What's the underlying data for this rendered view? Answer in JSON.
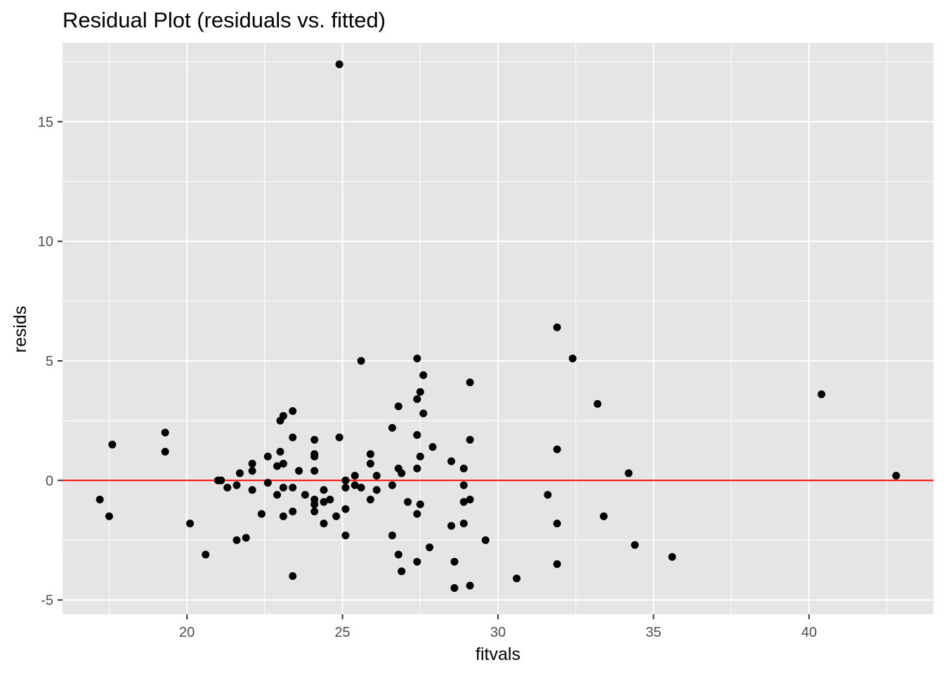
{
  "chart_data": {
    "type": "scatter",
    "title": "Residual Plot (residuals vs. fitted)",
    "xlabel": "fitvals",
    "ylabel": "resids",
    "xlim": [
      16,
      44
    ],
    "ylim": [
      -5.6,
      18.3
    ],
    "x_ticks": [
      20,
      25,
      30,
      35,
      40
    ],
    "y_ticks": [
      -5,
      0,
      5,
      10,
      15
    ],
    "x_tick_labels": [
      "20",
      "25",
      "30",
      "35",
      "40"
    ],
    "y_tick_labels": [
      "-5",
      "0",
      "5",
      "10",
      "15"
    ],
    "grid": true,
    "legend": "none",
    "reference_line": {
      "y": 0,
      "color": "#ff0000"
    },
    "colors": {
      "panel": "#e5e5e5",
      "grid": "#ffffff",
      "point": "#000000",
      "line": "#ff0000"
    },
    "points": [
      {
        "x": 17.2,
        "y": -0.8
      },
      {
        "x": 17.5,
        "y": -1.5
      },
      {
        "x": 17.6,
        "y": 1.5
      },
      {
        "x": 19.3,
        "y": 2.0
      },
      {
        "x": 19.3,
        "y": 1.2
      },
      {
        "x": 20.1,
        "y": -1.8
      },
      {
        "x": 20.6,
        "y": -3.1
      },
      {
        "x": 21.0,
        "y": 0.0
      },
      {
        "x": 21.1,
        "y": 0.0
      },
      {
        "x": 21.3,
        "y": -0.3
      },
      {
        "x": 21.6,
        "y": -0.2
      },
      {
        "x": 21.6,
        "y": -2.5
      },
      {
        "x": 21.7,
        "y": 0.3
      },
      {
        "x": 21.9,
        "y": -2.4
      },
      {
        "x": 22.1,
        "y": 0.7
      },
      {
        "x": 22.1,
        "y": 0.4
      },
      {
        "x": 22.1,
        "y": -0.4
      },
      {
        "x": 22.4,
        "y": -1.4
      },
      {
        "x": 22.6,
        "y": 1.0
      },
      {
        "x": 22.6,
        "y": -0.1
      },
      {
        "x": 22.9,
        "y": 0.6
      },
      {
        "x": 22.9,
        "y": -0.6
      },
      {
        "x": 23.0,
        "y": 2.5
      },
      {
        "x": 23.1,
        "y": 2.7
      },
      {
        "x": 23.0,
        "y": 1.2
      },
      {
        "x": 23.1,
        "y": 0.7
      },
      {
        "x": 23.1,
        "y": -0.3
      },
      {
        "x": 23.1,
        "y": -1.5
      },
      {
        "x": 23.4,
        "y": 2.9
      },
      {
        "x": 23.4,
        "y": 1.8
      },
      {
        "x": 23.4,
        "y": -0.3
      },
      {
        "x": 23.4,
        "y": -1.3
      },
      {
        "x": 23.4,
        "y": -4.0
      },
      {
        "x": 23.6,
        "y": 0.4
      },
      {
        "x": 23.8,
        "y": -0.6
      },
      {
        "x": 24.1,
        "y": 1.7
      },
      {
        "x": 24.1,
        "y": 1.1
      },
      {
        "x": 24.1,
        "y": 1.0
      },
      {
        "x": 24.1,
        "y": 0.4
      },
      {
        "x": 24.1,
        "y": -0.8
      },
      {
        "x": 24.1,
        "y": -1.0
      },
      {
        "x": 24.1,
        "y": -1.3
      },
      {
        "x": 24.4,
        "y": -0.4
      },
      {
        "x": 24.4,
        "y": -0.9
      },
      {
        "x": 24.4,
        "y": -1.8
      },
      {
        "x": 24.6,
        "y": -0.8
      },
      {
        "x": 24.8,
        "y": -1.5
      },
      {
        "x": 24.9,
        "y": 1.8
      },
      {
        "x": 24.9,
        "y": 17.4
      },
      {
        "x": 25.1,
        "y": 0.0
      },
      {
        "x": 25.1,
        "y": -0.3
      },
      {
        "x": 25.1,
        "y": -1.2
      },
      {
        "x": 25.1,
        "y": -2.3
      },
      {
        "x": 25.4,
        "y": 0.2
      },
      {
        "x": 25.4,
        "y": -0.2
      },
      {
        "x": 25.6,
        "y": -0.3
      },
      {
        "x": 25.6,
        "y": 5.0
      },
      {
        "x": 25.9,
        "y": 1.1
      },
      {
        "x": 25.9,
        "y": 0.7
      },
      {
        "x": 25.9,
        "y": -0.8
      },
      {
        "x": 26.1,
        "y": 0.2
      },
      {
        "x": 26.1,
        "y": -0.4
      },
      {
        "x": 26.6,
        "y": 2.2
      },
      {
        "x": 26.6,
        "y": -0.2
      },
      {
        "x": 26.6,
        "y": -2.3
      },
      {
        "x": 26.8,
        "y": 3.1
      },
      {
        "x": 26.8,
        "y": 0.5
      },
      {
        "x": 26.8,
        "y": -3.1
      },
      {
        "x": 26.9,
        "y": 0.3
      },
      {
        "x": 26.9,
        "y": -3.8
      },
      {
        "x": 27.1,
        "y": -0.9
      },
      {
        "x": 27.4,
        "y": 5.1
      },
      {
        "x": 27.4,
        "y": 3.4
      },
      {
        "x": 27.4,
        "y": 1.9
      },
      {
        "x": 27.4,
        "y": 0.5
      },
      {
        "x": 27.4,
        "y": -1.4
      },
      {
        "x": 27.4,
        "y": -3.4
      },
      {
        "x": 27.5,
        "y": 3.7
      },
      {
        "x": 27.5,
        "y": 1.0
      },
      {
        "x": 27.5,
        "y": -1.0
      },
      {
        "x": 27.6,
        "y": 4.4
      },
      {
        "x": 27.6,
        "y": 2.8
      },
      {
        "x": 27.8,
        "y": -2.8
      },
      {
        "x": 27.9,
        "y": 1.4
      },
      {
        "x": 28.5,
        "y": 0.8
      },
      {
        "x": 28.5,
        "y": -1.9
      },
      {
        "x": 28.6,
        "y": -3.4
      },
      {
        "x": 28.6,
        "y": -4.5
      },
      {
        "x": 28.9,
        "y": 0.5
      },
      {
        "x": 28.9,
        "y": -0.2
      },
      {
        "x": 28.9,
        "y": -0.9
      },
      {
        "x": 28.9,
        "y": -1.8
      },
      {
        "x": 29.1,
        "y": 4.1
      },
      {
        "x": 29.1,
        "y": 1.7
      },
      {
        "x": 29.1,
        "y": -0.8
      },
      {
        "x": 29.1,
        "y": -4.4
      },
      {
        "x": 29.6,
        "y": -2.5
      },
      {
        "x": 30.6,
        "y": -4.1
      },
      {
        "x": 31.6,
        "y": -0.6
      },
      {
        "x": 31.9,
        "y": 6.4
      },
      {
        "x": 31.9,
        "y": 1.3
      },
      {
        "x": 31.9,
        "y": -1.8
      },
      {
        "x": 31.9,
        "y": -3.5
      },
      {
        "x": 32.4,
        "y": 5.1
      },
      {
        "x": 33.2,
        "y": 3.2
      },
      {
        "x": 33.4,
        "y": -1.5
      },
      {
        "x": 34.2,
        "y": 0.3
      },
      {
        "x": 34.4,
        "y": -2.7
      },
      {
        "x": 35.6,
        "y": -3.2
      },
      {
        "x": 40.4,
        "y": 3.6
      },
      {
        "x": 42.8,
        "y": 0.2
      }
    ]
  }
}
